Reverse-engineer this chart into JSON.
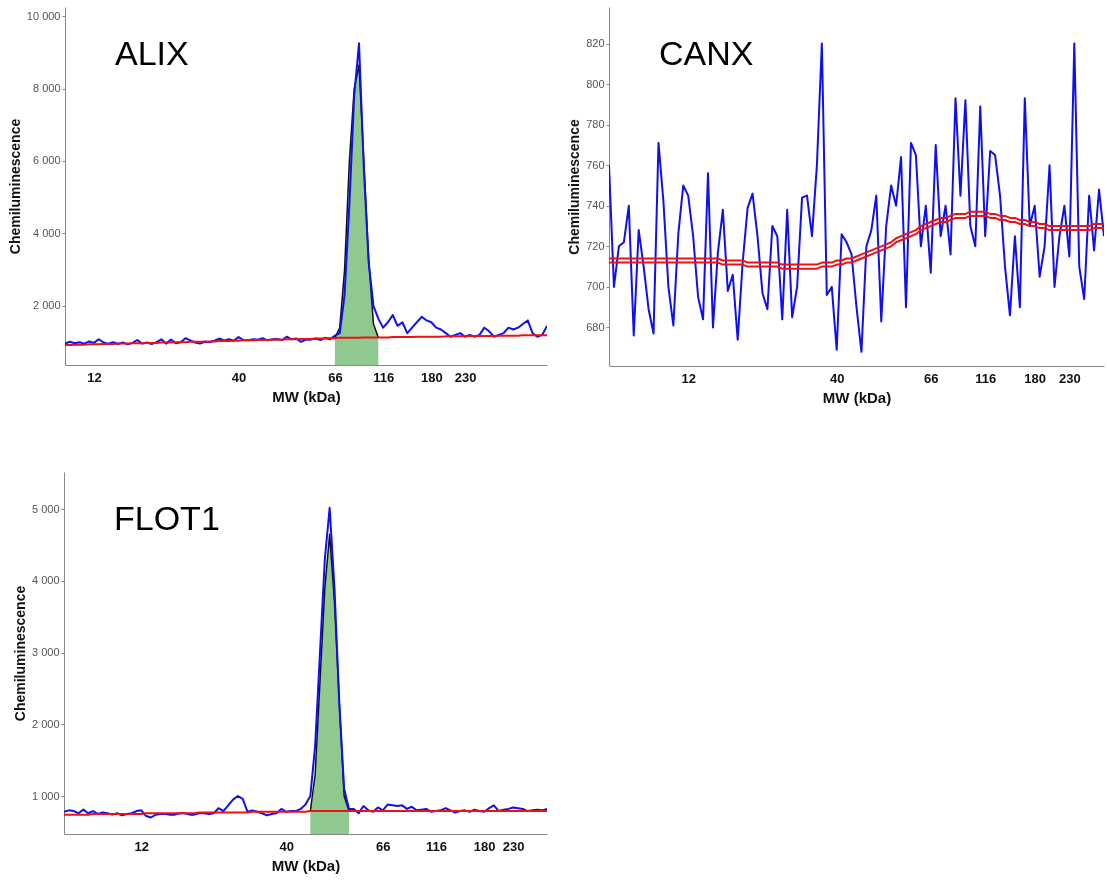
{
  "chart_data": [
    {
      "type": "line",
      "title": "ALIX",
      "xlabel": "MW (kDa)",
      "ylabel": "Chemiluminescence",
      "categories": [
        null,
        null,
        null,
        null,
        null,
        null,
        "12",
        null,
        null,
        null,
        null,
        null,
        null,
        null,
        null,
        null,
        null,
        null,
        null,
        null,
        null,
        null,
        null,
        null,
        null,
        null,
        null,
        null,
        null,
        null,
        null,
        null,
        null,
        null,
        null,
        null,
        "40",
        null,
        null,
        null,
        null,
        null,
        null,
        null,
        null,
        null,
        null,
        null,
        null,
        null,
        null,
        null,
        null,
        null,
        null,
        null,
        "66",
        null,
        null,
        null,
        null,
        null,
        null,
        null,
        null,
        null,
        "116",
        null,
        null,
        null,
        null,
        null,
        null,
        null,
        null,
        null,
        "180",
        null,
        null,
        null,
        null,
        null,
        null,
        "230",
        null,
        null,
        null,
        null,
        null,
        null,
        null,
        null,
        null,
        null,
        null,
        null,
        null,
        null,
        null,
        null,
        null
      ],
      "ylim": [
        370,
        10250
      ],
      "yticks": [
        {
          "value": 2000,
          "label": "2 000"
        },
        {
          "value": 4000,
          "label": "4 000"
        },
        {
          "value": 6000,
          "label": "6 000"
        },
        {
          "value": 8000,
          "label": "8 000"
        },
        {
          "value": 10000,
          "label": "10 000"
        }
      ],
      "series": [
        {
          "type": "area",
          "color": "#8fc98f",
          "values": [
            null,
            null,
            null,
            null,
            null,
            null,
            null,
            null,
            null,
            null,
            null,
            null,
            null,
            null,
            null,
            null,
            null,
            null,
            null,
            null,
            null,
            null,
            null,
            null,
            null,
            null,
            null,
            null,
            null,
            null,
            null,
            null,
            null,
            null,
            null,
            null,
            null,
            null,
            null,
            null,
            null,
            null,
            null,
            null,
            null,
            null,
            null,
            null,
            null,
            null,
            null,
            null,
            null,
            null,
            null,
            null,
            1110,
            1400,
            3000,
            6000,
            8000,
            8650,
            6000,
            3300,
            1500,
            1130,
            null,
            null,
            null,
            null,
            null,
            null,
            null,
            null,
            null,
            null,
            null,
            null,
            null,
            null,
            null,
            null,
            null,
            null,
            null,
            null,
            null,
            null,
            null,
            null,
            null,
            null,
            null,
            null,
            null,
            null,
            null,
            null,
            null,
            null,
            null
          ]
        },
        {
          "color": "#1010ee",
          "values": [
            960,
            1010,
            970,
            1000,
            960,
            1020,
            980,
            1080,
            990,
            960,
            1000,
            950,
            990,
            940,
            980,
            1060,
            960,
            990,
            950,
            1000,
            1080,
            960,
            1070,
            970,
            1000,
            1110,
            1050,
            990,
            960,
            1010,
            1000,
            1040,
            1100,
            1050,
            1080,
            1040,
            1140,
            1060,
            1050,
            1080,
            1070,
            1110,
            1050,
            1080,
            1090,
            1060,
            1150,
            1080,
            1100,
            1010,
            1070,
            1070,
            1100,
            1060,
            1120,
            1080,
            1180,
            1250,
            2300,
            4800,
            7800,
            9250,
            5800,
            3200,
            2000,
            1650,
            1400,
            1550,
            1750,
            1450,
            1550,
            1250,
            1400,
            1550,
            1700,
            1600,
            1550,
            1400,
            1350,
            1250,
            1150,
            1200,
            1250,
            1150,
            1200,
            1150,
            1200,
            1400,
            1300,
            1150,
            1200,
            1250,
            1400,
            1350,
            1400,
            1500,
            1600,
            1250,
            1150,
            1200,
            1450
          ]
        },
        {
          "color": "#ee1111",
          "values": [
            920,
            920,
            930,
            930,
            930,
            940,
            940,
            940,
            950,
            950,
            950,
            960,
            960,
            960,
            970,
            970,
            970,
            980,
            980,
            980,
            990,
            990,
            990,
            1000,
            1000,
            1000,
            1010,
            1010,
            1010,
            1020,
            1020,
            1020,
            1030,
            1030,
            1030,
            1040,
            1040,
            1050,
            1050,
            1050,
            1060,
            1060,
            1060,
            1070,
            1070,
            1070,
            1080,
            1080,
            1080,
            1090,
            1090,
            1090,
            1100,
            1100,
            1100,
            1110,
            1110,
            1120,
            1120,
            1120,
            1120,
            1120,
            1130,
            1130,
            1130,
            1130,
            1130,
            1130,
            1140,
            1140,
            1140,
            1140,
            1140,
            1150,
            1150,
            1150,
            1150,
            1150,
            1150,
            1160,
            1160,
            1160,
            1160,
            1160,
            1170,
            1170,
            1170,
            1170,
            1170,
            1170,
            1180,
            1180,
            1180,
            1180,
            1180,
            1190,
            1190,
            1190,
            1190,
            1190,
            1190
          ]
        }
      ]
    },
    {
      "type": "line",
      "title": "CANX",
      "xlabel": "MW (kDa)",
      "ylabel": "Chemiluminescence",
      "categories": [
        null,
        null,
        null,
        null,
        null,
        null,
        null,
        null,
        null,
        null,
        null,
        null,
        null,
        null,
        null,
        null,
        "12",
        null,
        null,
        null,
        null,
        null,
        null,
        null,
        null,
        null,
        null,
        null,
        null,
        null,
        null,
        null,
        null,
        null,
        null,
        null,
        null,
        null,
        null,
        null,
        null,
        null,
        null,
        null,
        null,
        null,
        "40",
        null,
        null,
        null,
        null,
        null,
        null,
        null,
        null,
        null,
        null,
        null,
        null,
        null,
        null,
        null,
        null,
        null,
        null,
        "66",
        null,
        null,
        null,
        null,
        null,
        null,
        null,
        null,
        null,
        null,
        "116",
        null,
        null,
        null,
        null,
        null,
        null,
        null,
        null,
        null,
        "180",
        null,
        null,
        null,
        null,
        null,
        null,
        "230",
        null,
        null,
        null,
        null,
        null,
        null,
        null
      ],
      "ylim": [
        661,
        838
      ],
      "yticks": [
        680,
        700,
        720,
        740,
        760,
        780,
        800,
        820
      ],
      "series": [
        {
          "color": "#1010ee",
          "values": [
            760,
            700,
            720,
            722,
            740,
            676,
            728,
            710,
            689,
            677,
            771,
            742,
            700,
            681,
            726,
            750,
            745,
            725,
            695,
            684,
            756,
            680,
            717,
            738,
            698,
            706,
            674,
            712,
            739,
            746,
            725,
            697,
            689,
            730,
            725,
            684,
            738,
            685,
            700,
            744,
            745,
            725,
            760,
            820,
            696,
            700,
            669,
            726,
            722,
            716,
            690,
            668,
            720,
            728,
            745,
            683,
            730,
            750,
            740,
            764,
            690,
            771,
            765,
            720,
            740,
            707,
            770,
            725,
            740,
            716,
            793,
            745,
            792,
            730,
            720,
            789,
            725,
            767,
            765,
            745,
            710,
            686,
            725,
            690,
            793,
            730,
            740,
            705,
            720,
            760,
            700,
            725,
            740,
            715,
            820,
            710,
            694,
            745,
            718,
            748,
            725
          ]
        },
        {
          "color": "#ee1111",
          "values": [
            714,
            714,
            714,
            714,
            714,
            714,
            714,
            714,
            714,
            714,
            714,
            714,
            714,
            714,
            714,
            714,
            714,
            714,
            714,
            714,
            714,
            714,
            714,
            713,
            713,
            713,
            713,
            713,
            712,
            712,
            712,
            712,
            712,
            712,
            712,
            711,
            711,
            711,
            711,
            711,
            711,
            711,
            711,
            712,
            712,
            712,
            713,
            713,
            714,
            714,
            715,
            716,
            717,
            718,
            719,
            720,
            721,
            722,
            724,
            725,
            726,
            727,
            728,
            730,
            731,
            732,
            733,
            734,
            734,
            735,
            736,
            736,
            736,
            737,
            737,
            737,
            737,
            736,
            736,
            735,
            735,
            734,
            734,
            733,
            733,
            732,
            732,
            731,
            731,
            730,
            730,
            730,
            730,
            730,
            730,
            730,
            730,
            730,
            731,
            731,
            731
          ]
        },
        {
          "color": "#ee1111",
          "values": [
            712,
            712,
            712,
            712,
            712,
            712,
            712,
            712,
            712,
            712,
            712,
            712,
            712,
            712,
            712,
            712,
            712,
            712,
            712,
            712,
            712,
            712,
            712,
            711,
            711,
            711,
            711,
            711,
            710,
            710,
            710,
            710,
            710,
            710,
            710,
            709,
            709,
            709,
            709,
            709,
            709,
            709,
            709,
            710,
            710,
            710,
            711,
            711,
            712,
            712,
            713,
            714,
            715,
            716,
            717,
            718,
            719,
            720,
            722,
            723,
            724,
            725,
            726,
            728,
            729,
            730,
            731,
            732,
            732,
            733,
            734,
            734,
            734,
            735,
            735,
            735,
            735,
            734,
            734,
            733,
            733,
            732,
            732,
            731,
            731,
            730,
            730,
            729,
            729,
            728,
            728,
            728,
            728,
            728,
            728,
            728,
            728,
            728,
            729,
            729,
            729
          ]
        }
      ]
    },
    {
      "type": "line",
      "title": "FLOT1",
      "xlabel": "MW (kDa)",
      "ylabel": "Chemiluminescence",
      "categories": [
        null,
        null,
        null,
        null,
        null,
        null,
        null,
        null,
        null,
        null,
        null,
        null,
        null,
        null,
        null,
        null,
        "12",
        null,
        null,
        null,
        null,
        null,
        null,
        null,
        null,
        null,
        null,
        null,
        null,
        null,
        null,
        null,
        null,
        null,
        null,
        null,
        null,
        null,
        null,
        null,
        null,
        null,
        null,
        null,
        null,
        null,
        "40",
        null,
        null,
        null,
        null,
        null,
        null,
        null,
        null,
        null,
        null,
        null,
        null,
        null,
        null,
        null,
        null,
        null,
        null,
        null,
        "66",
        null,
        null,
        null,
        null,
        null,
        null,
        null,
        null,
        null,
        null,
        "116",
        null,
        null,
        null,
        null,
        null,
        null,
        null,
        null,
        null,
        "180",
        null,
        null,
        null,
        null,
        null,
        "230",
        null,
        null,
        null,
        null,
        null,
        null,
        null
      ],
      "ylim": [
        470,
        5520
      ],
      "yticks": [
        {
          "value": 1000,
          "label": "1 000"
        },
        {
          "value": 2000,
          "label": "2 000"
        },
        {
          "value": 3000,
          "label": "3 000"
        },
        {
          "value": 4000,
          "label": "4 000"
        },
        {
          "value": 5000,
          "label": "5 000"
        }
      ],
      "series": [
        {
          "type": "area",
          "color": "#8fc98f",
          "values": [
            null,
            null,
            null,
            null,
            null,
            null,
            null,
            null,
            null,
            null,
            null,
            null,
            null,
            null,
            null,
            null,
            null,
            null,
            null,
            null,
            null,
            null,
            null,
            null,
            null,
            null,
            null,
            null,
            null,
            null,
            null,
            null,
            null,
            null,
            null,
            null,
            null,
            null,
            null,
            null,
            null,
            null,
            null,
            null,
            null,
            null,
            null,
            null,
            null,
            null,
            null,
            790,
            1300,
            2600,
            3900,
            4650,
            3700,
            2300,
            1000,
            790,
            null,
            null,
            null,
            null,
            null,
            null,
            null,
            null,
            null,
            null,
            null,
            null,
            null,
            null,
            null,
            null,
            null,
            null,
            null,
            null,
            null,
            null,
            null,
            null,
            null,
            null,
            null,
            null,
            null,
            null,
            null,
            null,
            null,
            null,
            null,
            null,
            null,
            null,
            null,
            null,
            null
          ]
        },
        {
          "color": "#1010ee",
          "values": [
            780,
            800,
            790,
            760,
            810,
            760,
            790,
            750,
            770,
            760,
            740,
            760,
            730,
            750,
            760,
            790,
            800,
            720,
            700,
            740,
            750,
            750,
            740,
            740,
            760,
            760,
            740,
            740,
            760,
            760,
            750,
            760,
            830,
            790,
            870,
            950,
            1000,
            960,
            780,
            800,
            780,
            760,
            730,
            750,
            760,
            820,
            780,
            790,
            790,
            820,
            880,
            1000,
            1700,
            3000,
            4300,
            5020,
            3900,
            2300,
            1100,
            820,
            820,
            760,
            860,
            800,
            780,
            840,
            800,
            880,
            870,
            860,
            870,
            820,
            850,
            800,
            810,
            820,
            780,
            790,
            800,
            830,
            800,
            770,
            790,
            800,
            780,
            810,
            790,
            780,
            830,
            870,
            790,
            810,
            820,
            840,
            830,
            820,
            790,
            800,
            810,
            800,
            820
          ]
        },
        {
          "color": "#ee1111",
          "values": [
            740,
            740,
            740,
            740,
            740,
            740,
            750,
            750,
            750,
            750,
            750,
            750,
            750,
            750,
            750,
            750,
            750,
            760,
            760,
            760,
            760,
            760,
            760,
            760,
            760,
            760,
            760,
            760,
            770,
            770,
            770,
            770,
            770,
            770,
            770,
            770,
            770,
            770,
            770,
            780,
            780,
            780,
            780,
            780,
            780,
            780,
            780,
            780,
            780,
            780,
            780,
            790,
            790,
            790,
            790,
            790,
            790,
            790,
            790,
            790,
            790,
            790,
            790,
            790,
            790,
            790,
            790,
            790,
            790,
            790,
            790,
            790,
            790,
            790,
            790,
            790,
            790,
            790,
            790,
            790,
            790,
            790,
            790,
            790,
            790,
            790,
            790,
            790,
            790,
            790,
            790,
            790,
            790,
            790,
            790,
            790,
            790,
            790,
            790,
            790,
            790
          ]
        }
      ]
    }
  ]
}
